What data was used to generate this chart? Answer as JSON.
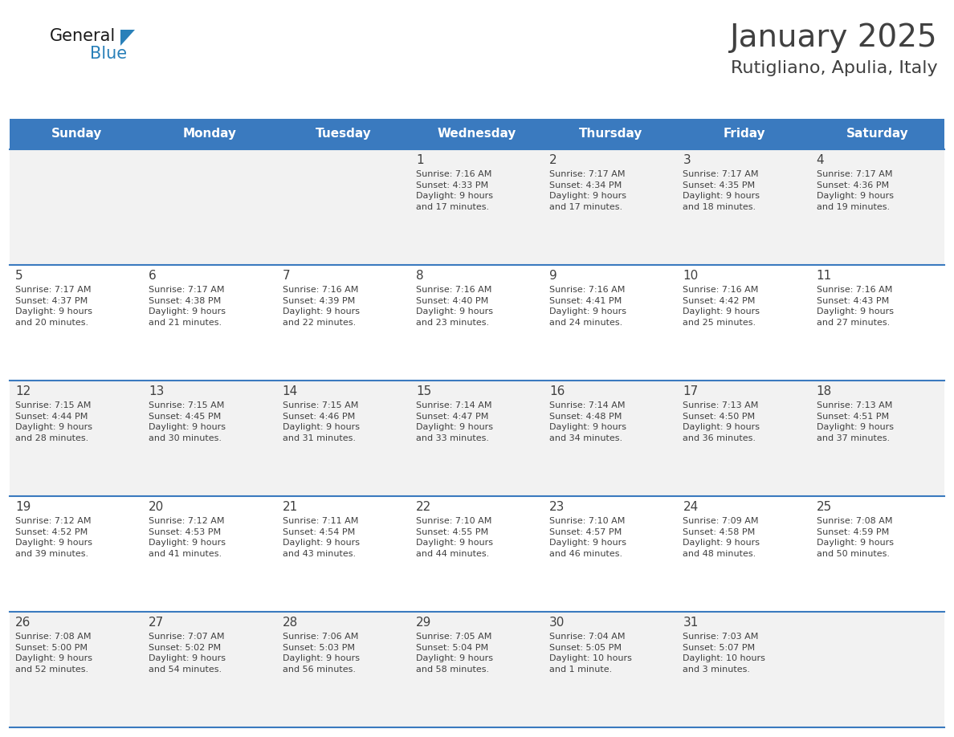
{
  "title": "January 2025",
  "subtitle": "Rutigliano, Apulia, Italy",
  "header_color": "#3a7abf",
  "header_text_color": "#ffffff",
  "cell_bg_odd": "#f2f2f2",
  "cell_bg_even": "#ffffff",
  "separator_color": "#3a7abf",
  "text_color": "#404040",
  "days_of_week": [
    "Sunday",
    "Monday",
    "Tuesday",
    "Wednesday",
    "Thursday",
    "Friday",
    "Saturday"
  ],
  "weeks": [
    [
      {
        "day": "",
        "info": ""
      },
      {
        "day": "",
        "info": ""
      },
      {
        "day": "",
        "info": ""
      },
      {
        "day": "1",
        "info": "Sunrise: 7:16 AM\nSunset: 4:33 PM\nDaylight: 9 hours\nand 17 minutes."
      },
      {
        "day": "2",
        "info": "Sunrise: 7:17 AM\nSunset: 4:34 PM\nDaylight: 9 hours\nand 17 minutes."
      },
      {
        "day": "3",
        "info": "Sunrise: 7:17 AM\nSunset: 4:35 PM\nDaylight: 9 hours\nand 18 minutes."
      },
      {
        "day": "4",
        "info": "Sunrise: 7:17 AM\nSunset: 4:36 PM\nDaylight: 9 hours\nand 19 minutes."
      }
    ],
    [
      {
        "day": "5",
        "info": "Sunrise: 7:17 AM\nSunset: 4:37 PM\nDaylight: 9 hours\nand 20 minutes."
      },
      {
        "day": "6",
        "info": "Sunrise: 7:17 AM\nSunset: 4:38 PM\nDaylight: 9 hours\nand 21 minutes."
      },
      {
        "day": "7",
        "info": "Sunrise: 7:16 AM\nSunset: 4:39 PM\nDaylight: 9 hours\nand 22 minutes."
      },
      {
        "day": "8",
        "info": "Sunrise: 7:16 AM\nSunset: 4:40 PM\nDaylight: 9 hours\nand 23 minutes."
      },
      {
        "day": "9",
        "info": "Sunrise: 7:16 AM\nSunset: 4:41 PM\nDaylight: 9 hours\nand 24 minutes."
      },
      {
        "day": "10",
        "info": "Sunrise: 7:16 AM\nSunset: 4:42 PM\nDaylight: 9 hours\nand 25 minutes."
      },
      {
        "day": "11",
        "info": "Sunrise: 7:16 AM\nSunset: 4:43 PM\nDaylight: 9 hours\nand 27 minutes."
      }
    ],
    [
      {
        "day": "12",
        "info": "Sunrise: 7:15 AM\nSunset: 4:44 PM\nDaylight: 9 hours\nand 28 minutes."
      },
      {
        "day": "13",
        "info": "Sunrise: 7:15 AM\nSunset: 4:45 PM\nDaylight: 9 hours\nand 30 minutes."
      },
      {
        "day": "14",
        "info": "Sunrise: 7:15 AM\nSunset: 4:46 PM\nDaylight: 9 hours\nand 31 minutes."
      },
      {
        "day": "15",
        "info": "Sunrise: 7:14 AM\nSunset: 4:47 PM\nDaylight: 9 hours\nand 33 minutes."
      },
      {
        "day": "16",
        "info": "Sunrise: 7:14 AM\nSunset: 4:48 PM\nDaylight: 9 hours\nand 34 minutes."
      },
      {
        "day": "17",
        "info": "Sunrise: 7:13 AM\nSunset: 4:50 PM\nDaylight: 9 hours\nand 36 minutes."
      },
      {
        "day": "18",
        "info": "Sunrise: 7:13 AM\nSunset: 4:51 PM\nDaylight: 9 hours\nand 37 minutes."
      }
    ],
    [
      {
        "day": "19",
        "info": "Sunrise: 7:12 AM\nSunset: 4:52 PM\nDaylight: 9 hours\nand 39 minutes."
      },
      {
        "day": "20",
        "info": "Sunrise: 7:12 AM\nSunset: 4:53 PM\nDaylight: 9 hours\nand 41 minutes."
      },
      {
        "day": "21",
        "info": "Sunrise: 7:11 AM\nSunset: 4:54 PM\nDaylight: 9 hours\nand 43 minutes."
      },
      {
        "day": "22",
        "info": "Sunrise: 7:10 AM\nSunset: 4:55 PM\nDaylight: 9 hours\nand 44 minutes."
      },
      {
        "day": "23",
        "info": "Sunrise: 7:10 AM\nSunset: 4:57 PM\nDaylight: 9 hours\nand 46 minutes."
      },
      {
        "day": "24",
        "info": "Sunrise: 7:09 AM\nSunset: 4:58 PM\nDaylight: 9 hours\nand 48 minutes."
      },
      {
        "day": "25",
        "info": "Sunrise: 7:08 AM\nSunset: 4:59 PM\nDaylight: 9 hours\nand 50 minutes."
      }
    ],
    [
      {
        "day": "26",
        "info": "Sunrise: 7:08 AM\nSunset: 5:00 PM\nDaylight: 9 hours\nand 52 minutes."
      },
      {
        "day": "27",
        "info": "Sunrise: 7:07 AM\nSunset: 5:02 PM\nDaylight: 9 hours\nand 54 minutes."
      },
      {
        "day": "28",
        "info": "Sunrise: 7:06 AM\nSunset: 5:03 PM\nDaylight: 9 hours\nand 56 minutes."
      },
      {
        "day": "29",
        "info": "Sunrise: 7:05 AM\nSunset: 5:04 PM\nDaylight: 9 hours\nand 58 minutes."
      },
      {
        "day": "30",
        "info": "Sunrise: 7:04 AM\nSunset: 5:05 PM\nDaylight: 10 hours\nand 1 minute."
      },
      {
        "day": "31",
        "info": "Sunrise: 7:03 AM\nSunset: 5:07 PM\nDaylight: 10 hours\nand 3 minutes."
      },
      {
        "day": "",
        "info": ""
      }
    ]
  ],
  "logo_text_general": "General",
  "logo_text_blue": "Blue",
  "logo_color_general": "#1a1a1a",
  "logo_color_blue": "#2980b9",
  "logo_triangle_color": "#2980b9",
  "title_fontsize": 28,
  "subtitle_fontsize": 16,
  "header_fontsize": 11,
  "day_num_fontsize": 11,
  "info_fontsize": 8
}
